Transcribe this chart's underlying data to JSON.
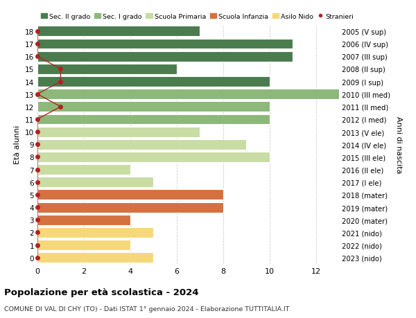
{
  "ages": [
    18,
    17,
    16,
    15,
    14,
    13,
    12,
    11,
    10,
    9,
    8,
    7,
    6,
    5,
    4,
    3,
    2,
    1,
    0
  ],
  "years": [
    "2005 (V sup)",
    "2006 (IV sup)",
    "2007 (III sup)",
    "2008 (II sup)",
    "2009 (I sup)",
    "2010 (III med)",
    "2011 (II med)",
    "2012 (I med)",
    "2013 (V ele)",
    "2014 (IV ele)",
    "2015 (III ele)",
    "2016 (II ele)",
    "2017 (I ele)",
    "2018 (mater)",
    "2019 (mater)",
    "2020 (mater)",
    "2021 (nido)",
    "2022 (nido)",
    "2023 (nido)"
  ],
  "bar_values": [
    7,
    11,
    11,
    6,
    10,
    13,
    10,
    10,
    7,
    9,
    10,
    4,
    5,
    8,
    8,
    4,
    5,
    4,
    5
  ],
  "bar_colors": [
    "#4a7c4e",
    "#4a7c4e",
    "#4a7c4e",
    "#4a7c4e",
    "#4a7c4e",
    "#8cb87a",
    "#8cb87a",
    "#8cb87a",
    "#c8dca4",
    "#c8dca4",
    "#c8dca4",
    "#c8dca4",
    "#c8dca4",
    "#d4713e",
    "#d4713e",
    "#d4713e",
    "#f5d87a",
    "#f5d87a",
    "#f5d87a"
  ],
  "stranieri_dot_ages": [
    18,
    17,
    16,
    15,
    14,
    13,
    12,
    11,
    10,
    9,
    8,
    7,
    6,
    5,
    4,
    3,
    2,
    1,
    0
  ],
  "stranieri_dot_x": [
    0,
    0,
    0,
    1,
    1,
    0,
    1,
    0,
    0,
    0,
    0,
    0,
    0,
    0,
    0,
    0,
    0,
    0,
    0
  ],
  "title": "Popolazione per età scolastica - 2024",
  "subtitle": "COMUNE DI VAL DI CHY (TO) - Dati ISTAT 1° gennaio 2024 - Elaborazione TUTTITALIA.IT",
  "ylabel": "Età alunni",
  "right_label": "Anni di nascita",
  "xlim": [
    0,
    13
  ],
  "ylim": [
    -0.5,
    18.5
  ],
  "xticks": [
    0,
    2,
    4,
    6,
    8,
    10,
    12
  ],
  "color_sec2": "#4a7c4e",
  "color_sec1": "#8cb87a",
  "color_prim": "#c8dca4",
  "color_infanzia": "#d4713e",
  "color_nido": "#f5d87a",
  "color_stranieri": "#b22222",
  "grid_color": "#cccccc",
  "bar_height": 0.82
}
